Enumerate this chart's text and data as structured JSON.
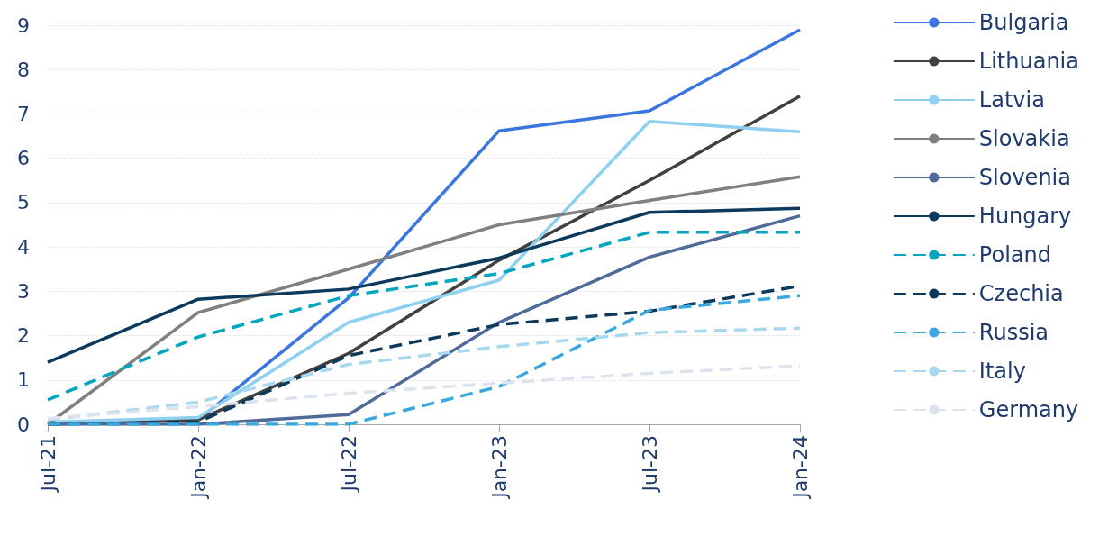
{
  "chart_data": {
    "type": "line",
    "categories": [
      "Jul-21",
      "Jan-22",
      "Jul-22",
      "Jan-23",
      "Jul-23",
      "Jan-24"
    ],
    "ylim": [
      0,
      9
    ],
    "yticks": [
      0,
      1,
      2,
      3,
      4,
      5,
      6,
      7,
      8,
      9
    ],
    "grid": "y",
    "legend": "right",
    "marker": "none",
    "series": [
      {
        "name": "Bulgaria",
        "color": "#3a75e0",
        "line_style": "solid",
        "values": [
          0,
          0.1,
          2.85,
          6.62,
          7.07,
          8.9
        ]
      },
      {
        "name": "Lithuania",
        "color": "#404040",
        "line_style": "solid",
        "values": [
          0,
          0.1,
          1.6,
          3.7,
          5.5,
          7.4
        ]
      },
      {
        "name": "Latvia",
        "color": "#8fd0f0",
        "line_style": "solid",
        "values": [
          0.05,
          0.15,
          2.3,
          3.25,
          6.83,
          6.6
        ]
      },
      {
        "name": "Slovakia",
        "color": "#808080",
        "line_style": "solid",
        "values": [
          0,
          2.52,
          3.5,
          4.5,
          5.05,
          5.58
        ]
      },
      {
        "name": "Slovenia",
        "color": "#4f6b99",
        "line_style": "solid",
        "values": [
          0,
          0,
          0.22,
          2.3,
          3.77,
          4.7
        ]
      },
      {
        "name": "Hungary",
        "color": "#0b3a5c",
        "line_style": "solid",
        "values": [
          1.4,
          2.82,
          3.05,
          3.75,
          4.78,
          4.87
        ]
      },
      {
        "name": "Poland",
        "color": "#00a5c0",
        "line_style": "dashed",
        "values": [
          0.55,
          1.97,
          2.9,
          3.4,
          4.33,
          4.33
        ]
      },
      {
        "name": "Czechia",
        "color": "#0b3a5c",
        "line_style": "dashed",
        "values": [
          0,
          0.05,
          1.55,
          2.25,
          2.55,
          3.12
        ]
      },
      {
        "name": "Russia",
        "color": "#3aa8e0",
        "line_style": "dashed",
        "values": [
          0,
          0,
          0,
          0.85,
          2.57,
          2.9
        ]
      },
      {
        "name": "Italy",
        "color": "#a8d8f0",
        "line_style": "dashed",
        "values": [
          0.1,
          0.5,
          1.35,
          1.75,
          2.07,
          2.17
        ]
      },
      {
        "name": "Germany",
        "color": "#dde3ee",
        "line_style": "dashed",
        "values": [
          0.13,
          0.4,
          0.7,
          0.93,
          1.15,
          1.32
        ]
      }
    ]
  }
}
